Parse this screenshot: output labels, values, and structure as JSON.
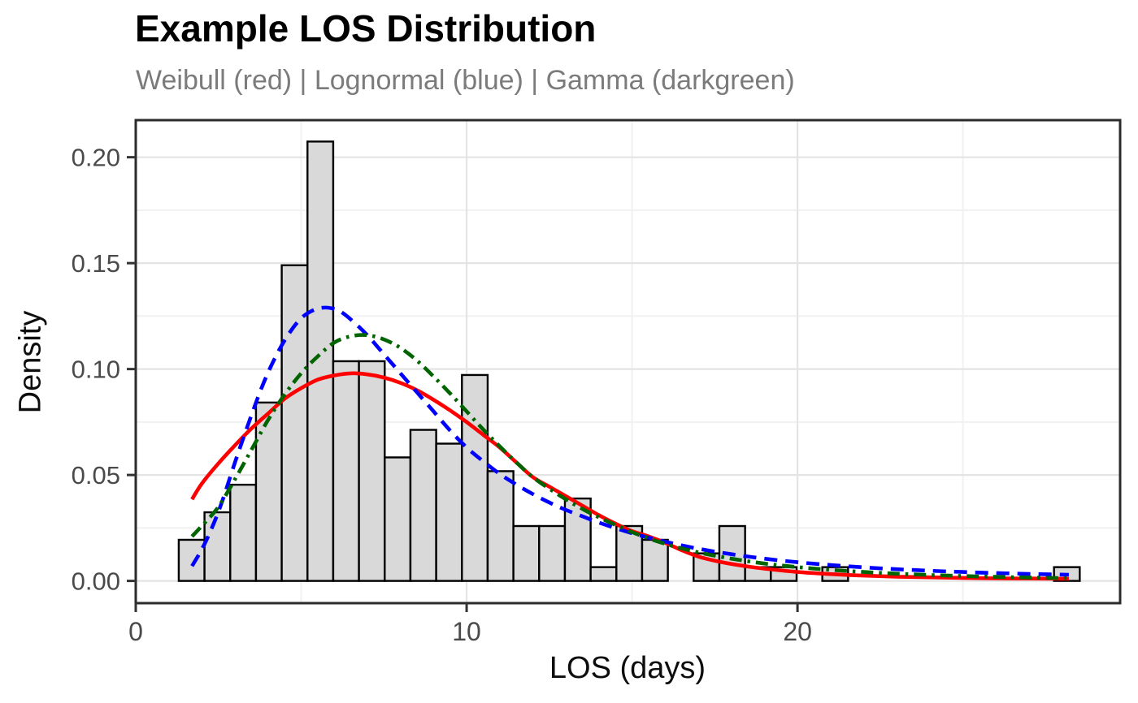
{
  "chart_data": {
    "type": "histogram+line",
    "title": "Example LOS Distribution",
    "subtitle": "Weibull (red) | Lognormal (blue) | Gamma (darkgreen)",
    "xlabel": "LOS (days)",
    "ylabel": "Density",
    "legend_position": "none",
    "grid": true,
    "x_axis": {
      "range": [
        0,
        29.75
      ],
      "ticks": [
        0,
        10,
        20
      ],
      "tick_labels": [
        "0",
        "10",
        "20"
      ],
      "minor_ticks": [
        5,
        15,
        25
      ]
    },
    "y_axis": {
      "range": [
        -0.0105,
        0.2175
      ],
      "ticks": [
        0,
        0.05,
        0.1,
        0.15,
        0.2
      ],
      "tick_labels": [
        "0.00",
        "0.05",
        "0.10",
        "0.15",
        "0.20"
      ],
      "minor_ticks": [
        0.025,
        0.075,
        0.125,
        0.175
      ]
    },
    "histogram": {
      "bin_start": 1.3,
      "bin_width": 0.778,
      "fill": "#D9D9D9",
      "stroke": "#000000",
      "densities": [
        0.0194,
        0.0324,
        0.0454,
        0.0842,
        0.149,
        0.2074,
        0.1037,
        0.1037,
        0.0583,
        0.0713,
        0.0648,
        0.0972,
        0.0518,
        0.0259,
        0.0259,
        0.0389,
        0.0065,
        0.0259,
        0.0194,
        0,
        0.013,
        0.0259,
        0.0065,
        0.0065,
        0,
        0.0065,
        0,
        0,
        0,
        0,
        0,
        0,
        0,
        0,
        0.0065
      ]
    },
    "series": [
      {
        "name": "Weibull",
        "color": "#FF0000",
        "linetype": "solid",
        "x": [
          1.7,
          2,
          2.5,
          3,
          3.5,
          4,
          4.5,
          5,
          5.5,
          6,
          6.5,
          7,
          7.5,
          8,
          8.5,
          9,
          9.5,
          10,
          10.5,
          11,
          11.5,
          12,
          12.5,
          13,
          13.5,
          14,
          14.5,
          15,
          15.5,
          16,
          16.5,
          17,
          17.5,
          18,
          18.5,
          19,
          20,
          21,
          22,
          23,
          24,
          25,
          26,
          27,
          28.2
        ],
        "y": [
          0.0385,
          0.046,
          0.0555,
          0.064,
          0.072,
          0.079,
          0.086,
          0.091,
          0.095,
          0.097,
          0.098,
          0.0975,
          0.096,
          0.0935,
          0.09,
          0.0855,
          0.0805,
          0.075,
          0.069,
          0.063,
          0.056,
          0.049,
          0.0445,
          0.04,
          0.0355,
          0.031,
          0.027,
          0.0235,
          0.021,
          0.018,
          0.0145,
          0.0115,
          0.0095,
          0.008,
          0.0068,
          0.0058,
          0.0042,
          0.0032,
          0.0025,
          0.002,
          0.0017,
          0.0014,
          0.0012,
          0.0011,
          0.001
        ]
      },
      {
        "name": "Lognormal",
        "color": "#0000FF",
        "linetype": "dashed",
        "x": [
          1.7,
          2,
          2.3,
          2.6,
          3,
          3.4,
          3.8,
          4.2,
          4.6,
          5,
          5.4,
          5.8,
          6.2,
          6.6,
          7,
          7.5,
          8,
          8.5,
          9,
          9.5,
          10,
          10.5,
          11,
          11.5,
          12,
          12.5,
          13,
          13.5,
          14,
          15,
          16,
          17,
          18,
          19,
          20,
          21,
          22,
          23,
          24,
          25,
          26,
          27,
          28.2
        ],
        "y": [
          0.007,
          0.015,
          0.025,
          0.037,
          0.056,
          0.074,
          0.091,
          0.105,
          0.116,
          0.124,
          0.128,
          0.129,
          0.127,
          0.122,
          0.116,
          0.107,
          0.098,
          0.089,
          0.08,
          0.071,
          0.063,
          0.0565,
          0.0505,
          0.0455,
          0.041,
          0.037,
          0.0335,
          0.0305,
          0.0275,
          0.0225,
          0.0185,
          0.0152,
          0.0126,
          0.0105,
          0.0088,
          0.0075,
          0.0064,
          0.0055,
          0.0048,
          0.0042,
          0.0037,
          0.0033,
          0.0029
        ]
      },
      {
        "name": "Gamma",
        "color": "#006400",
        "linetype": "dotdash",
        "x": [
          1.7,
          2,
          2.5,
          3,
          3.5,
          4,
          4.5,
          5,
          5.5,
          6,
          6.5,
          7,
          7.5,
          8,
          8.5,
          9,
          9.5,
          10,
          10.5,
          11,
          11.5,
          12,
          12.5,
          13,
          13.5,
          14,
          15,
          16,
          17,
          18,
          19,
          20,
          21,
          22,
          23,
          24,
          25,
          26,
          27,
          28.2
        ],
        "y": [
          0.021,
          0.026,
          0.035,
          0.048,
          0.062,
          0.076,
          0.088,
          0.098,
          0.106,
          0.1125,
          0.1155,
          0.116,
          0.114,
          0.11,
          0.104,
          0.0965,
          0.0885,
          0.08,
          0.0715,
          0.0635,
          0.056,
          0.049,
          0.0435,
          0.0385,
          0.034,
          0.03,
          0.023,
          0.0175,
          0.0135,
          0.0105,
          0.0082,
          0.0065,
          0.0052,
          0.0042,
          0.0034,
          0.0028,
          0.0023,
          0.0019,
          0.0016,
          0.0013
        ]
      }
    ],
    "colors": {
      "panel_border": "#2b2b2b",
      "grid_major": "#e4e4e4",
      "grid_minor": "#f1f1f1",
      "tick_label": "#4a4a4a",
      "axis_tick": "#333333",
      "subtitle": "#7b7b7b",
      "title": "#000000"
    }
  }
}
